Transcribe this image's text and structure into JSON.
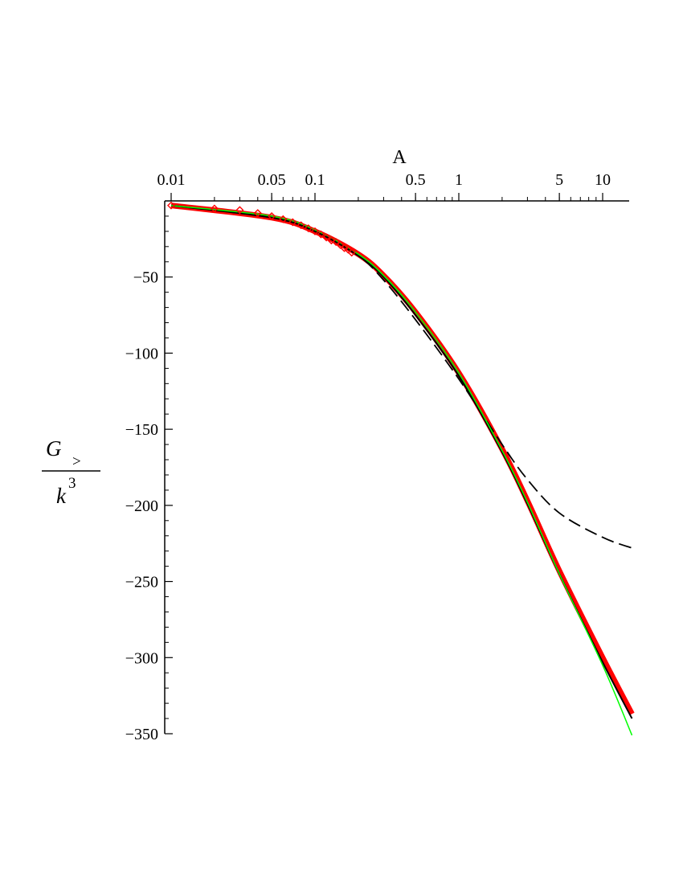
{
  "chart_data": {
    "type": "line",
    "xlabel": "A",
    "x_scale": "log",
    "x_axis_position": "top",
    "xlim": [
      0.01,
      15
    ],
    "ylim": [
      -350,
      0
    ],
    "ylabel": {
      "numerator_main": "G",
      "numerator_sub": ">",
      "denominator_main": "k",
      "denominator_sup": "3"
    },
    "x_ticks": [
      {
        "value": 0.01,
        "label": "0.01"
      },
      {
        "value": 0.05,
        "label": "0.05"
      },
      {
        "value": 0.1,
        "label": "0.1"
      },
      {
        "value": 0.5,
        "label": "0.5"
      },
      {
        "value": 1,
        "label": "1"
      },
      {
        "value": 5,
        "label": "5"
      },
      {
        "value": 10,
        "label": "10"
      }
    ],
    "y_ticks": [
      {
        "value": -50,
        "label": "−50"
      },
      {
        "value": -100,
        "label": "−100"
      },
      {
        "value": -150,
        "label": "−150"
      },
      {
        "value": -200,
        "label": "−200"
      },
      {
        "value": -250,
        "label": "−250"
      },
      {
        "value": -300,
        "label": "−300"
      },
      {
        "value": -350,
        "label": "−350"
      }
    ],
    "series": [
      {
        "style": "red-thick",
        "color": "#ff0000",
        "x": [
          0.01,
          0.05,
          0.1,
          0.2,
          0.3,
          0.5,
          1,
          2,
          3,
          5,
          10,
          16
        ],
        "y": [
          -3,
          -11,
          -20,
          -35,
          -49,
          -73,
          -113,
          -163,
          -197,
          -243,
          -300,
          -337
        ]
      },
      {
        "style": "black-solid",
        "color": "#000000",
        "x": [
          0.01,
          0.05,
          0.1,
          0.2,
          0.3,
          0.5,
          1,
          2,
          3,
          5,
          10,
          16
        ],
        "y": [
          -3,
          -11,
          -20,
          -36,
          -50,
          -75,
          -115,
          -165,
          -199,
          -245,
          -303,
          -340
        ]
      },
      {
        "style": "black-dashed",
        "color": "#000000",
        "x": [
          0.01,
          0.05,
          0.1,
          0.2,
          0.3,
          0.5,
          1,
          2,
          3,
          5,
          10,
          16
        ],
        "y": [
          -3,
          -11,
          -20,
          -36,
          -52,
          -78,
          -117,
          -160,
          -183,
          -205,
          -221,
          -228
        ]
      },
      {
        "style": "green-thin",
        "color": "#00ff00",
        "x": [
          0.01,
          0.05,
          0.1,
          0.2,
          0.3,
          0.5,
          1,
          2,
          3,
          5,
          10,
          16
        ],
        "y": [
          -3,
          -10,
          -19,
          -35,
          -49,
          -73,
          -113,
          -164,
          -198,
          -245,
          -305,
          -351
        ]
      },
      {
        "style": "markers",
        "marker": "diamond",
        "color": "#ff0000",
        "x": [
          0.01,
          0.02,
          0.03,
          0.04,
          0.05,
          0.06,
          0.07,
          0.08,
          0.09,
          0.1,
          0.11,
          0.12,
          0.13,
          0.14,
          0.15,
          0.16,
          0.17,
          0.18
        ],
        "y": [
          -3,
          -5,
          -6,
          -8,
          -10,
          -12,
          -14,
          -16,
          -18,
          -20,
          -22,
          -24,
          -26,
          -27,
          -29,
          -31,
          -32,
          -34
        ]
      }
    ]
  }
}
